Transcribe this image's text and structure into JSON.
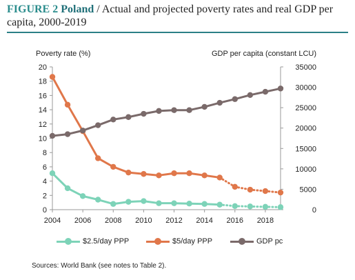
{
  "figure": {
    "label": "FIGURE 2",
    "country": "Poland",
    "title": " / Actual and projected poverty rates and real GDP per capita, 2000-2019"
  },
  "source_note": "Sources: World Bank (see notes to Table 2).",
  "colors": {
    "title_rule": "#2b7f86",
    "label": "#2a8c8c"
  },
  "chart_data": {
    "type": "line",
    "ylabel_left": "Poverty rate (%)",
    "ylabel_right": "GDP per capita (constant LCU)",
    "xlim": [
      2004,
      2019
    ],
    "ylim_left": [
      0,
      20
    ],
    "ylim_right": [
      0,
      35000
    ],
    "x_ticks": [
      "2004",
      "2006",
      "2008",
      "2010",
      "2012",
      "2014",
      "2016",
      "2018"
    ],
    "y_ticks_left": [
      "0",
      "2",
      "4",
      "6",
      "8",
      "10",
      "12",
      "14",
      "16",
      "18",
      "20"
    ],
    "y_ticks_right": [
      "0",
      "5000",
      "10000",
      "15000",
      "20000",
      "25000",
      "30000",
      "35000"
    ],
    "grid": false,
    "legend_position": "bottom",
    "series": [
      {
        "name": "$2.5/day PPP",
        "axis": "left",
        "color": "#7dd3b8",
        "x": [
          2004,
          2005,
          2006,
          2007,
          2008,
          2009,
          2010,
          2011,
          2012,
          2013,
          2014,
          2015,
          2016,
          2017,
          2018,
          2019
        ],
        "values": [
          5.1,
          3.0,
          1.9,
          1.4,
          0.8,
          1.1,
          1.2,
          0.9,
          0.9,
          0.85,
          0.8,
          0.7,
          0.5,
          0.45,
          0.4,
          0.35
        ],
        "style": [
          "solid",
          "solid",
          "solid",
          "solid",
          "solid",
          "solid",
          "solid",
          "solid",
          "solid",
          "solid",
          "solid",
          "dotted",
          "dotted",
          "dotted",
          "dotted"
        ]
      },
      {
        "name": "$5/day PPP",
        "axis": "left",
        "color": "#e0774a",
        "x": [
          2004,
          2005,
          2006,
          2007,
          2008,
          2009,
          2010,
          2011,
          2012,
          2013,
          2014,
          2015,
          2016,
          2017,
          2018,
          2019
        ],
        "values": [
          18.6,
          14.7,
          11.0,
          7.2,
          6.0,
          5.2,
          5.0,
          4.8,
          5.1,
          5.1,
          4.8,
          4.5,
          3.2,
          2.8,
          2.6,
          2.4
        ],
        "style": [
          "solid",
          "solid",
          "solid",
          "solid",
          "solid",
          "solid",
          "solid",
          "solid",
          "solid",
          "solid",
          "solid",
          "dotted",
          "dotted",
          "dotted",
          "dotted"
        ]
      },
      {
        "name": "GDP pc",
        "axis": "right",
        "color": "#7a6a6a",
        "x": [
          2004,
          2005,
          2006,
          2007,
          2008,
          2009,
          2010,
          2011,
          2012,
          2013,
          2014,
          2015,
          2016,
          2017,
          2018,
          2019
        ],
        "values": [
          18100,
          18500,
          19400,
          20700,
          22100,
          22700,
          23500,
          24200,
          24400,
          24400,
          25200,
          26200,
          27100,
          28100,
          28900,
          29700
        ],
        "style": [
          "solid",
          "solid",
          "solid",
          "solid",
          "solid",
          "solid",
          "solid",
          "solid",
          "solid",
          "solid",
          "solid",
          "solid",
          "solid",
          "solid",
          "solid"
        ]
      }
    ]
  }
}
